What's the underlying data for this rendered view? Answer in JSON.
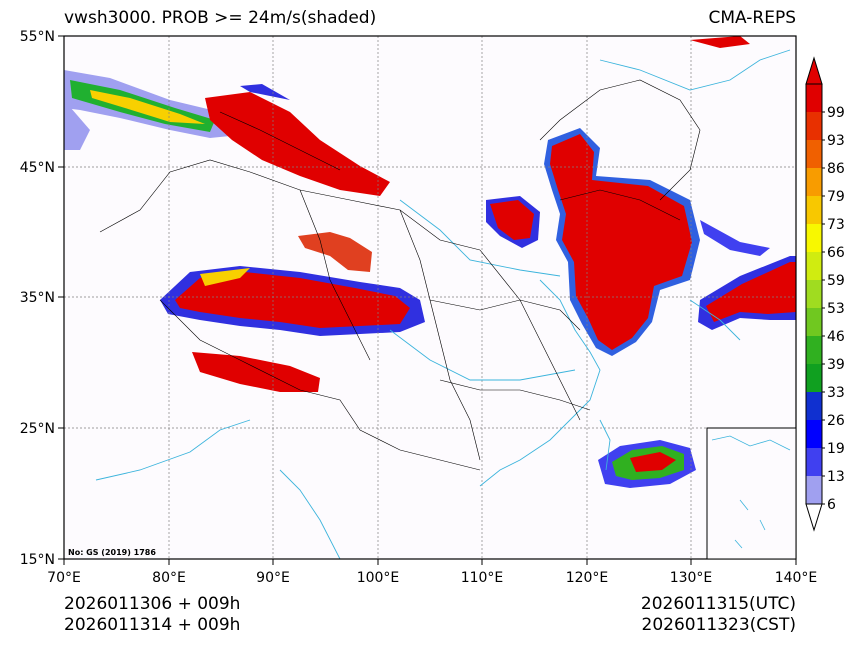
{
  "header": {
    "title": "vwsh3000. PROB >= 24m/s(shaded)",
    "model": "CMA-REPS"
  },
  "map": {
    "lat_labels": [
      "55°N",
      "45°N",
      "35°N",
      "25°N",
      "15°N"
    ],
    "lon_labels": [
      "70°E",
      "80°E",
      "90°E",
      "100°E",
      "110°E",
      "120°E",
      "130°E",
      "140°E"
    ],
    "lat_range": [
      15,
      55
    ],
    "lon_range": [
      70,
      140
    ],
    "review_number": "No: GS (2019) 1786",
    "colors": {
      "coast": "#3cb4dc",
      "border": "#000000",
      "background": "#fdfbfe",
      "grid": "#808080"
    }
  },
  "colorbar": {
    "levels": [
      "6",
      "13",
      "19",
      "26",
      "33",
      "39",
      "46",
      "53",
      "59",
      "66",
      "73",
      "79",
      "86",
      "93",
      "99"
    ],
    "colors": [
      "#a0a0f0",
      "#4040f0",
      "#0000ff",
      "#1030d0",
      "#10a020",
      "#30b020",
      "#70c820",
      "#a0dc20",
      "#d0ec10",
      "#f8f800",
      "#f8c800",
      "#f89c00",
      "#f06000",
      "#e83000",
      "#e00000"
    ]
  },
  "footer": {
    "init_time": "2026011306  +  009h",
    "init_time_local": "2026011314  +  009h",
    "valid_utc": "2026011315(UTC)",
    "valid_cst": "2026011323(CST)"
  }
}
